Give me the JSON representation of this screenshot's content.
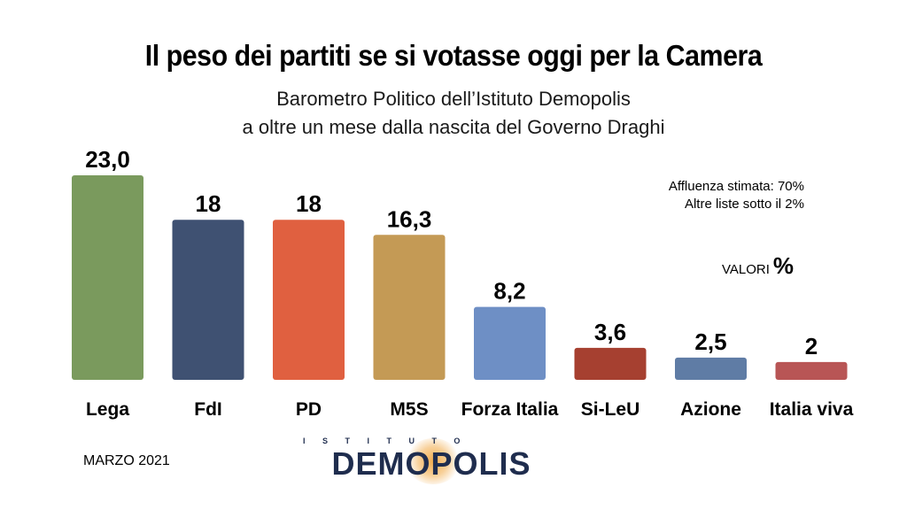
{
  "header": {
    "title": "Il peso dei partiti se si votasse oggi per la Camera",
    "subtitle_line1": "Barometro Politico dell’Istituto Demopolis",
    "subtitle_line2": "a oltre un mese dalla nascita del Governo Draghi"
  },
  "notes": {
    "affluenza": "Affluenza stimata: 70%",
    "altre_liste": "Altre liste sotto il 2%",
    "valori_label": "VALORI",
    "valori_unit": "%"
  },
  "footer": {
    "date": "MARZO 2021",
    "logo_top": "ISTITUTO",
    "logo_main": "DEMOPOLIS"
  },
  "chart_data": {
    "type": "bar",
    "categories": [
      "Lega",
      "FdI",
      "PD",
      "M5S",
      "Forza Italia",
      "Si-LeU",
      "Azione",
      "Italia viva"
    ],
    "values": [
      23.0,
      18,
      18,
      16.3,
      8.2,
      3.6,
      2.5,
      2
    ],
    "value_labels": [
      "23,0",
      "18",
      "18",
      "16,3",
      "8,2",
      "3,6",
      "2,5",
      "2"
    ],
    "colors": [
      "#7a9a5d",
      "#3f5172",
      "#e06040",
      "#c49a55",
      "#6e8fc5",
      "#a64030",
      "#5f7ca5",
      "#b85555"
    ],
    "ylim": [
      0,
      23.0
    ],
    "grid": false,
    "legend": "none"
  }
}
